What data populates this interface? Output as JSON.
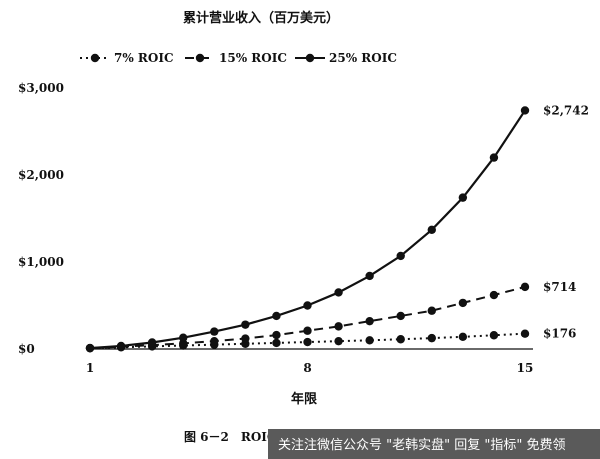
{
  "chart_data": {
    "type": "line",
    "title": "累计营业收入（百万美元）",
    "xlabel": "年限",
    "ylabel": "",
    "x": [
      1,
      2,
      3,
      4,
      5,
      6,
      7,
      8,
      9,
      10,
      11,
      12,
      13,
      14,
      15
    ],
    "xticks": [
      1,
      8,
      15
    ],
    "xlim": [
      1,
      15
    ],
    "yticks": [
      0,
      1000,
      2000,
      3000
    ],
    "ytick_labels": [
      "$0",
      "$1,000",
      "$2,000",
      "$3,000"
    ],
    "ylim": [
      0,
      3000
    ],
    "grid": false,
    "legend_position": "top",
    "series": [
      {
        "name": "7% ROIC",
        "style": "dotted",
        "end_label": "$176",
        "values": [
          10,
          20,
          30,
          40,
          50,
          60,
          70,
          80,
          90,
          100,
          112,
          125,
          140,
          158,
          176
        ]
      },
      {
        "name": "15% ROIC",
        "style": "dashed",
        "end_label": "$714",
        "values": [
          10,
          25,
          45,
          65,
          90,
          120,
          160,
          210,
          260,
          320,
          380,
          440,
          530,
          620,
          714
        ]
      },
      {
        "name": "25% ROIC",
        "style": "solid",
        "end_label": "$2,742",
        "values": [
          10,
          35,
          75,
          130,
          200,
          280,
          380,
          500,
          650,
          840,
          1070,
          1370,
          1740,
          2200,
          2742
        ]
      }
    ]
  },
  "caption": "图 6－2　ROIC和复利的力量",
  "watermark": "关注注微信公众号 \"老韩实盘\" 回复 \"指标\" 免费领",
  "colors": {
    "line": "#111111",
    "watermark_bg": "#5a5a5a"
  }
}
